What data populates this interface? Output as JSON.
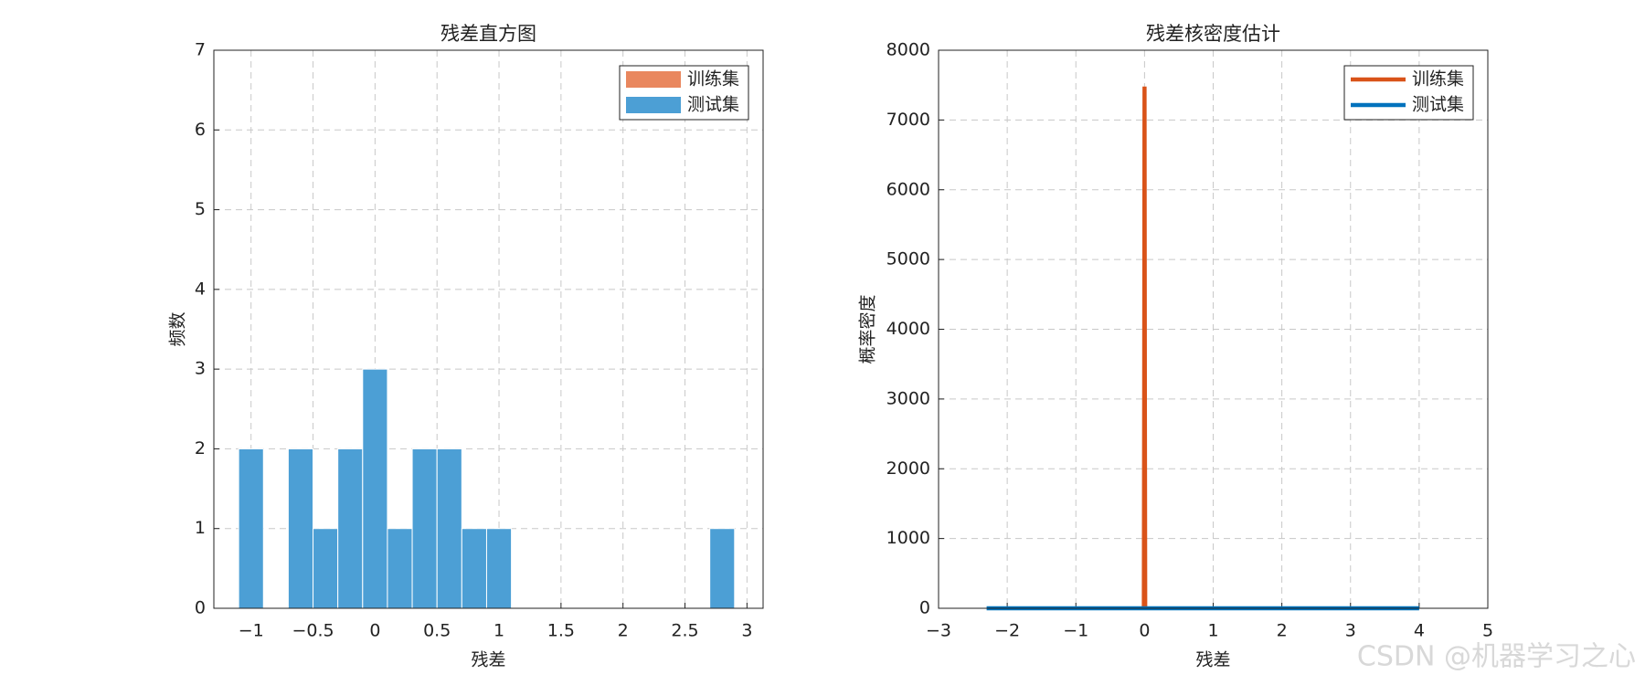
{
  "chart_data": [
    {
      "type": "histogram",
      "title": "残差直方图",
      "xlabel": "残差",
      "ylabel": "频数",
      "bins": [
        -1.1,
        -0.9,
        -0.7,
        -0.5,
        -0.3,
        -0.1,
        0.1,
        0.3,
        0.5,
        0.7,
        0.9,
        1.1,
        1.3,
        1.5,
        1.7,
        1.9,
        2.1,
        2.3,
        2.5,
        2.7,
        2.9
      ],
      "series": [
        {
          "name": "训练集",
          "color": "#e9875e"
        },
        {
          "name": "测试集",
          "color": "#4c9fd5",
          "counts": [
            2,
            0,
            2,
            1,
            2,
            3,
            1,
            2,
            2,
            1,
            1,
            0,
            0,
            0,
            0,
            0,
            0,
            0,
            0,
            1
          ]
        }
      ],
      "xlim": [
        -1.3,
        3.13
      ],
      "xticks": [
        {
          "value": -1,
          "label": "−1"
        },
        {
          "value": -0.5,
          "label": "−0.5"
        },
        0,
        0.5,
        1,
        1.5,
        2,
        2.5,
        3
      ],
      "ylim": [
        0,
        7
      ],
      "yticks": [
        0,
        1,
        2,
        3,
        4,
        5,
        6,
        7
      ],
      "grid": true,
      "legend": "upper right"
    },
    {
      "type": "line",
      "title": "残差核密度估计",
      "xlabel": "残差",
      "ylabel": "概率密度",
      "series": [
        {
          "name": "训练集",
          "color": "#d95319",
          "x": [
            -0.01,
            -0.005,
            0,
            0.005,
            0.01
          ],
          "values": [
            0,
            3000,
            7480,
            3000,
            0
          ]
        },
        {
          "name": "测试集",
          "color": "#0072bd",
          "x": [
            -2.3,
            -1,
            0,
            1,
            2,
            3,
            4
          ],
          "values": [
            0.02,
            0.2,
            0.35,
            0.3,
            0.1,
            0.05,
            0.01
          ]
        }
      ],
      "xlim": [
        -3,
        5
      ],
      "xticks": [
        {
          "value": -3,
          "label": "−3"
        },
        {
          "value": -2,
          "label": "−2"
        },
        {
          "value": -1,
          "label": "−1"
        },
        0,
        1,
        2,
        3,
        4,
        5
      ],
      "ylim": [
        0,
        8000
      ],
      "yticks": [
        0,
        1000,
        2000,
        3000,
        4000,
        5000,
        6000,
        7000,
        8000
      ],
      "grid": true,
      "legend": "upper right"
    }
  ],
  "watermark": "CSDN @机器学习之心"
}
